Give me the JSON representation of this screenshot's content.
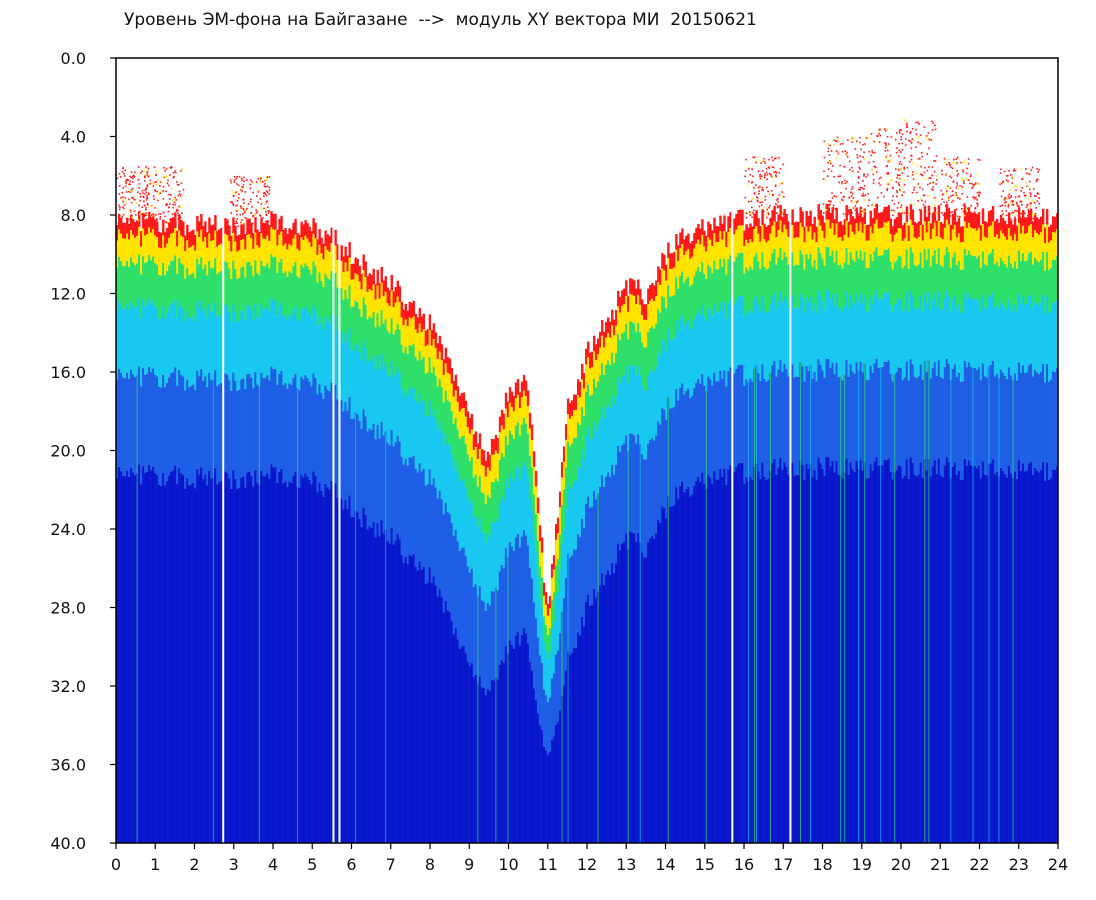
{
  "chart_data": {
    "type": "heatmap",
    "title": "Уровень ЭМ-фона на Байгазане  -->  модуль XY вектора МИ  20150621",
    "xlabel": "",
    "ylabel": "",
    "x_ticks": [
      "0",
      "1",
      "2",
      "3",
      "4",
      "5",
      "6",
      "7",
      "8",
      "9",
      "10",
      "11",
      "12",
      "13",
      "14",
      "15",
      "16",
      "17",
      "18",
      "19",
      "20",
      "21",
      "22",
      "23",
      "24"
    ],
    "y_ticks": [
      "0.0",
      "4.0",
      "8.0",
      "12.0",
      "16.0",
      "20.0",
      "24.0",
      "28.0",
      "32.0",
      "36.0",
      "40.0"
    ],
    "xlim": [
      0,
      24
    ],
    "ylim": [
      0,
      40
    ],
    "y_inverted": true,
    "grid": false,
    "colorscale": [
      "#ffffff",
      "#ff1a1a",
      "#ffe400",
      "#2ee06a",
      "#18c8f0",
      "#1e5fe6",
      "#0a1ad0",
      "#0a14c8"
    ],
    "dominant_color": "#0a1ad0",
    "upper_envelope": {
      "description_hours": [
        0,
        1,
        2,
        3,
        4,
        5,
        5.5,
        6,
        7,
        8,
        8.5,
        9,
        9.5,
        10,
        10.5,
        11,
        11.5,
        12,
        12.5,
        13,
        13.5,
        14,
        14.5,
        15,
        16,
        17,
        18,
        19,
        20,
        21,
        22,
        23,
        24
      ],
      "top_of_signal": [
        8.2,
        8.3,
        8.5,
        8.6,
        8.3,
        8.6,
        9.2,
        10.0,
        11.6,
        13.5,
        15.8,
        18.0,
        20.5,
        17.0,
        16.5,
        28.5,
        18.0,
        15.0,
        13.5,
        11.5,
        12.0,
        10.0,
        9.0,
        8.5,
        8.2,
        8.0,
        8.0,
        8.0,
        8.0,
        8.0,
        8.1,
        8.2,
        8.3
      ]
    },
    "red_sparks_top": [
      {
        "hour": 0.3,
        "depth": 5.5
      },
      {
        "hour": 1.2,
        "depth": 5.5
      },
      {
        "hour": 3.4,
        "depth": 6.0
      },
      {
        "hour": 16.5,
        "depth": 5.0
      },
      {
        "hour": 18.5,
        "depth": 4.0
      },
      {
        "hour": 19.5,
        "depth": 3.5
      },
      {
        "hour": 20.4,
        "depth": 3.0
      },
      {
        "hour": 21.5,
        "depth": 5.0
      },
      {
        "hour": 23.0,
        "depth": 5.5
      }
    ],
    "white_gaps_hours": [
      2.75,
      5.55,
      5.7,
      15.7,
      17.2
    ]
  }
}
